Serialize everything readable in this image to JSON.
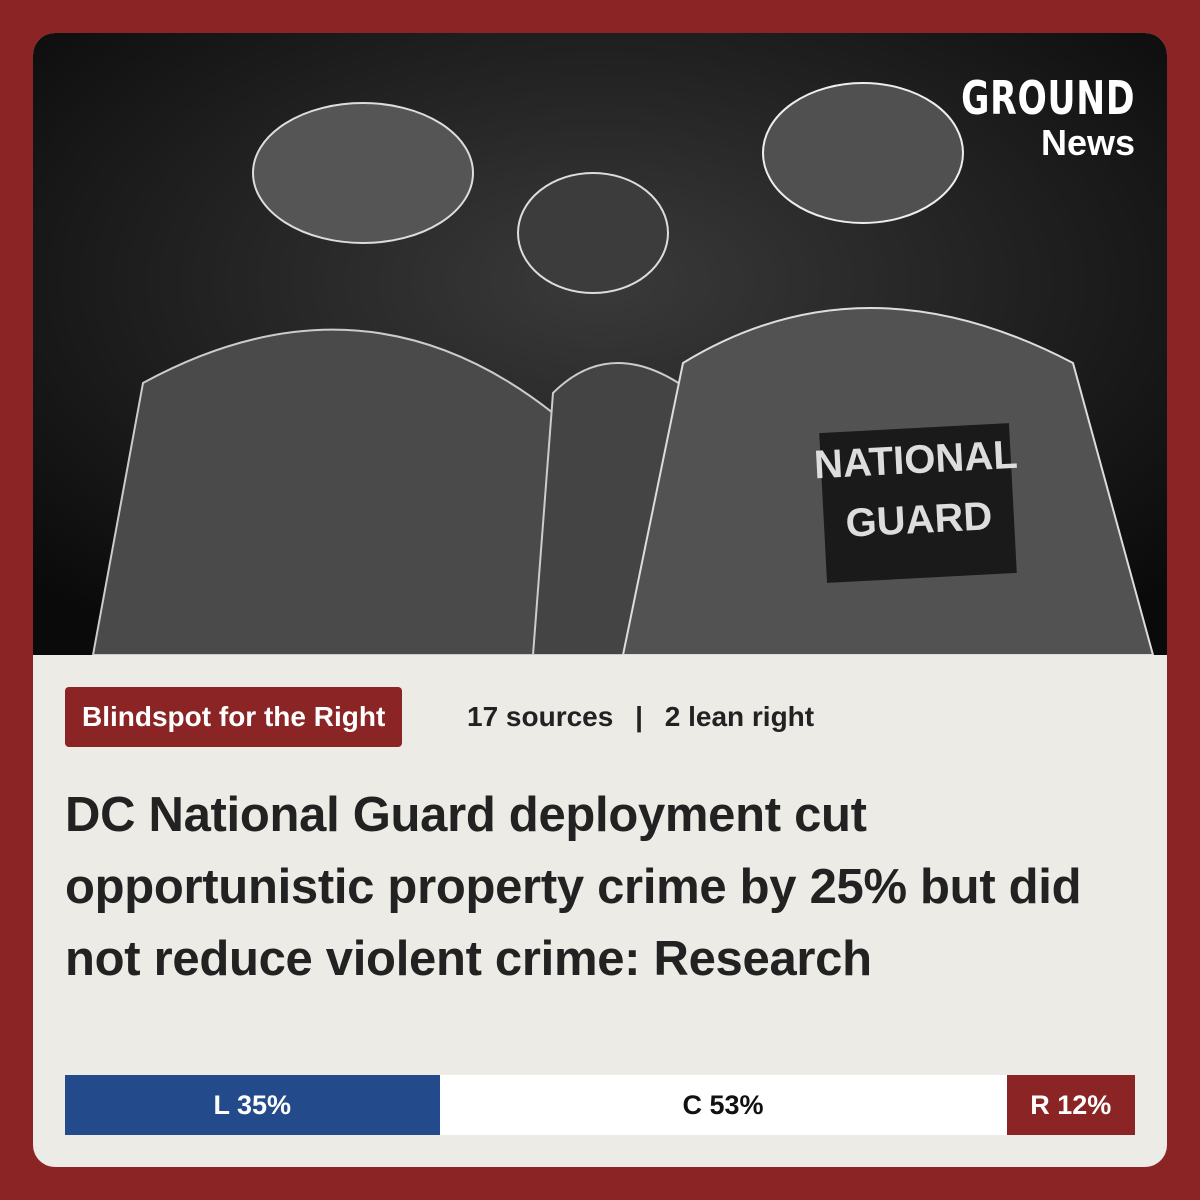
{
  "logo": {
    "wordmark": "GROUND",
    "sub": "News"
  },
  "image": {
    "patch_lines": [
      "NATIONAL",
      "GUARD"
    ]
  },
  "badge": "Blindspot for the Right",
  "meta": {
    "sources": "17 sources",
    "separator": "|",
    "lean": "2 lean right"
  },
  "headline": "DC National Guard deployment cut opportunistic property crime by 25% but did not reduce violent crime: Research",
  "bias": [
    {
      "label": "L 35%",
      "value": 35,
      "color": "#234a8a",
      "text_color": "#ffffff"
    },
    {
      "label": "C 53%",
      "value": 53,
      "color": "#ffffff",
      "text_color": "#111111"
    },
    {
      "label": "R 12%",
      "value": 12,
      "color": "#8b2525",
      "text_color": "#ffffff"
    }
  ]
}
